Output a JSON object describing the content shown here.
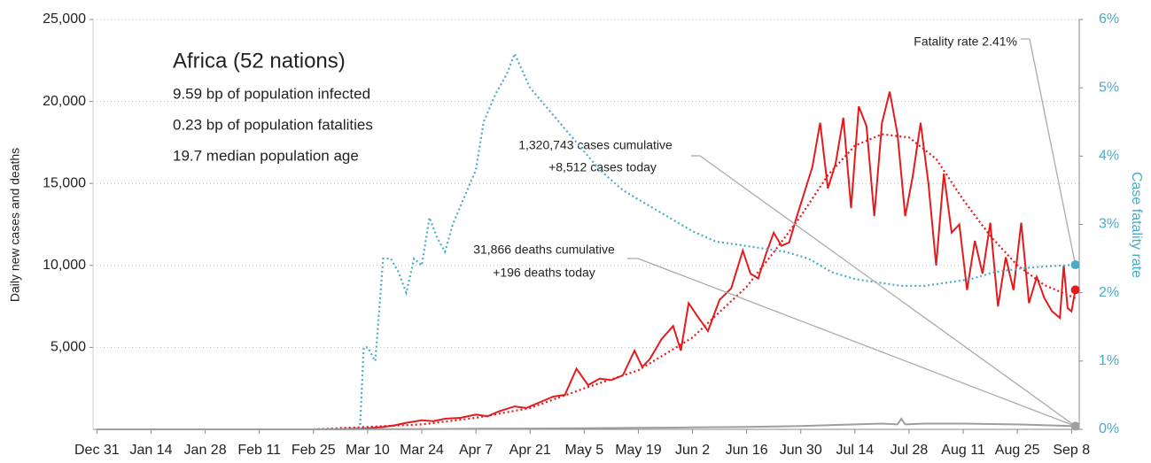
{
  "chart_data": {
    "type": "line",
    "title": "Africa (52 nations)",
    "subtitle_lines": [
      "9.59 bp of population infected",
      "0.23 bp of population fatalities",
      "19.7 median population age"
    ],
    "ylabel": "Daily new cases and deaths",
    "y2label": "Case fatality rate",
    "annotations": {
      "fatality": "Fatality rate 2.41%",
      "cases": [
        "1,320,743 cases cumulative",
        "+8,512 cases today"
      ],
      "deaths": [
        "31,866 deaths cumulative",
        "+196 deaths today"
      ]
    },
    "xlim": [
      -1,
      254
    ],
    "xticks": [
      {
        "value": 0,
        "label": "Dec 31"
      },
      {
        "value": 14,
        "label": "Jan 14"
      },
      {
        "value": 28,
        "label": "Jan 28"
      },
      {
        "value": 42,
        "label": "Feb 11"
      },
      {
        "value": 56,
        "label": "Feb 25"
      },
      {
        "value": 70,
        "label": "Mar 10"
      },
      {
        "value": 84,
        "label": "Mar 24"
      },
      {
        "value": 98,
        "label": "Apr 7"
      },
      {
        "value": 112,
        "label": "Apr 21"
      },
      {
        "value": 126,
        "label": "May 5"
      },
      {
        "value": 140,
        "label": "May 19"
      },
      {
        "value": 154,
        "label": "Jun 2"
      },
      {
        "value": 168,
        "label": "Jun 16"
      },
      {
        "value": 182,
        "label": "Jun 30"
      },
      {
        "value": 196,
        "label": "Jul 14"
      },
      {
        "value": 210,
        "label": "Jul 28"
      },
      {
        "value": 224,
        "label": "Aug 11"
      },
      {
        "value": 238,
        "label": "Aug 25"
      },
      {
        "value": 252,
        "label": "Sep 8"
      }
    ],
    "ylim": [
      0,
      25000
    ],
    "yticks": [
      {
        "value": 5000,
        "label": "5,000"
      },
      {
        "value": 10000,
        "label": "10,000"
      },
      {
        "value": 15000,
        "label": "15,000"
      },
      {
        "value": 20000,
        "label": "20,000"
      },
      {
        "value": 25000,
        "label": "25,000"
      }
    ],
    "y2lim": [
      0,
      6
    ],
    "y2ticks": [
      {
        "value": 0,
        "label": "0%"
      },
      {
        "value": 1,
        "label": "1%"
      },
      {
        "value": 2,
        "label": "2%"
      },
      {
        "value": 3,
        "label": "3%"
      },
      {
        "value": 4,
        "label": "4%"
      },
      {
        "value": 5,
        "label": "5%"
      },
      {
        "value": 6,
        "label": "6%"
      }
    ],
    "grid": true,
    "series": [
      {
        "color": "#e41a1c",
        "style": "solid",
        "x": [
          0,
          14,
          28,
          42,
          56,
          63,
          66,
          70,
          74,
          77,
          80,
          84,
          87,
          90,
          94,
          98,
          101,
          104,
          108,
          111,
          115,
          118,
          121,
          124,
          127,
          130,
          133,
          136,
          139,
          141,
          143,
          146,
          149,
          151,
          153,
          155,
          158,
          161,
          164,
          167,
          169,
          171,
          173,
          175,
          177,
          179,
          181,
          183,
          185,
          187,
          189,
          191,
          193,
          195,
          197,
          199,
          201,
          203,
          205,
          207,
          209,
          211,
          213,
          215,
          217,
          219,
          221,
          223,
          225,
          227,
          229,
          231,
          233,
          235,
          237,
          239,
          241,
          243,
          245,
          247,
          249,
          250,
          251,
          252,
          253
        ],
        "values": [
          0,
          0,
          0,
          0,
          0,
          10,
          30,
          60,
          150,
          250,
          400,
          550,
          500,
          650,
          700,
          900,
          800,
          1100,
          1400,
          1300,
          1700,
          2000,
          2100,
          3700,
          2700,
          3100,
          3000,
          3300,
          4800,
          3800,
          4300,
          5500,
          6300,
          4800,
          7700,
          7000,
          6000,
          7900,
          8600,
          10900,
          9500,
          9200,
          10700,
          12000,
          11200,
          11400,
          13000,
          14500,
          16000,
          18700,
          14700,
          16200,
          19000,
          13500,
          19700,
          18500,
          13000,
          18700,
          20600,
          18000,
          13000,
          15500,
          18700,
          15000,
          10000,
          15600,
          12000,
          12500,
          8500,
          11500,
          9500,
          12600,
          7500,
          10500,
          8500,
          12600,
          7700,
          9300,
          8000,
          7200,
          6800,
          10000,
          7400,
          7200,
          8512
        ]
      },
      {
        "color": "#e41a1c",
        "style": "dotted",
        "x": [
          56,
          84,
          98,
          112,
          126,
          140,
          154,
          168,
          175,
          182,
          189,
          196,
          203,
          210,
          217,
          224,
          231,
          238,
          245,
          253
        ],
        "values": [
          0,
          300,
          700,
          1300,
          2500,
          3600,
          5600,
          8700,
          10800,
          13000,
          15500,
          17300,
          18000,
          17800,
          16500,
          14000,
          11800,
          10000,
          8800,
          8000
        ]
      },
      {
        "color": "#9e9e9e",
        "style": "solid",
        "x": [
          0,
          56,
          70,
          84,
          98,
          112,
          126,
          140,
          154,
          168,
          182,
          196,
          203,
          207,
          208,
          209,
          214,
          224,
          238,
          252,
          253
        ],
        "values": [
          0,
          0,
          5,
          20,
          40,
          50,
          70,
          90,
          120,
          150,
          200,
          300,
          350,
          300,
          650,
          300,
          350,
          350,
          300,
          200,
          196
        ]
      },
      {
        "color": "#4bacc6",
        "style": "dotted",
        "axis": "y2",
        "x": [
          68,
          69,
          70,
          72,
          74,
          76,
          78,
          80,
          82,
          84,
          86,
          88,
          90,
          92,
          95,
          98,
          100,
          103,
          106,
          108,
          112,
          118,
          124,
          130,
          136,
          142,
          148,
          154,
          160,
          166,
          172,
          178,
          184,
          190,
          196,
          202,
          208,
          214,
          220,
          226,
          232,
          238,
          244,
          250,
          253
        ],
        "values": [
          0,
          1.2,
          1.2,
          1.0,
          2.5,
          2.5,
          2.3,
          2.0,
          2.5,
          2.4,
          3.1,
          2.8,
          2.6,
          3.0,
          3.4,
          3.8,
          4.5,
          4.9,
          5.2,
          5.5,
          5.0,
          4.6,
          4.2,
          3.8,
          3.5,
          3.3,
          3.1,
          2.9,
          2.75,
          2.7,
          2.65,
          2.6,
          2.5,
          2.3,
          2.2,
          2.15,
          2.1,
          2.1,
          2.15,
          2.2,
          2.3,
          2.35,
          2.38,
          2.4,
          2.41
        ]
      }
    ]
  }
}
